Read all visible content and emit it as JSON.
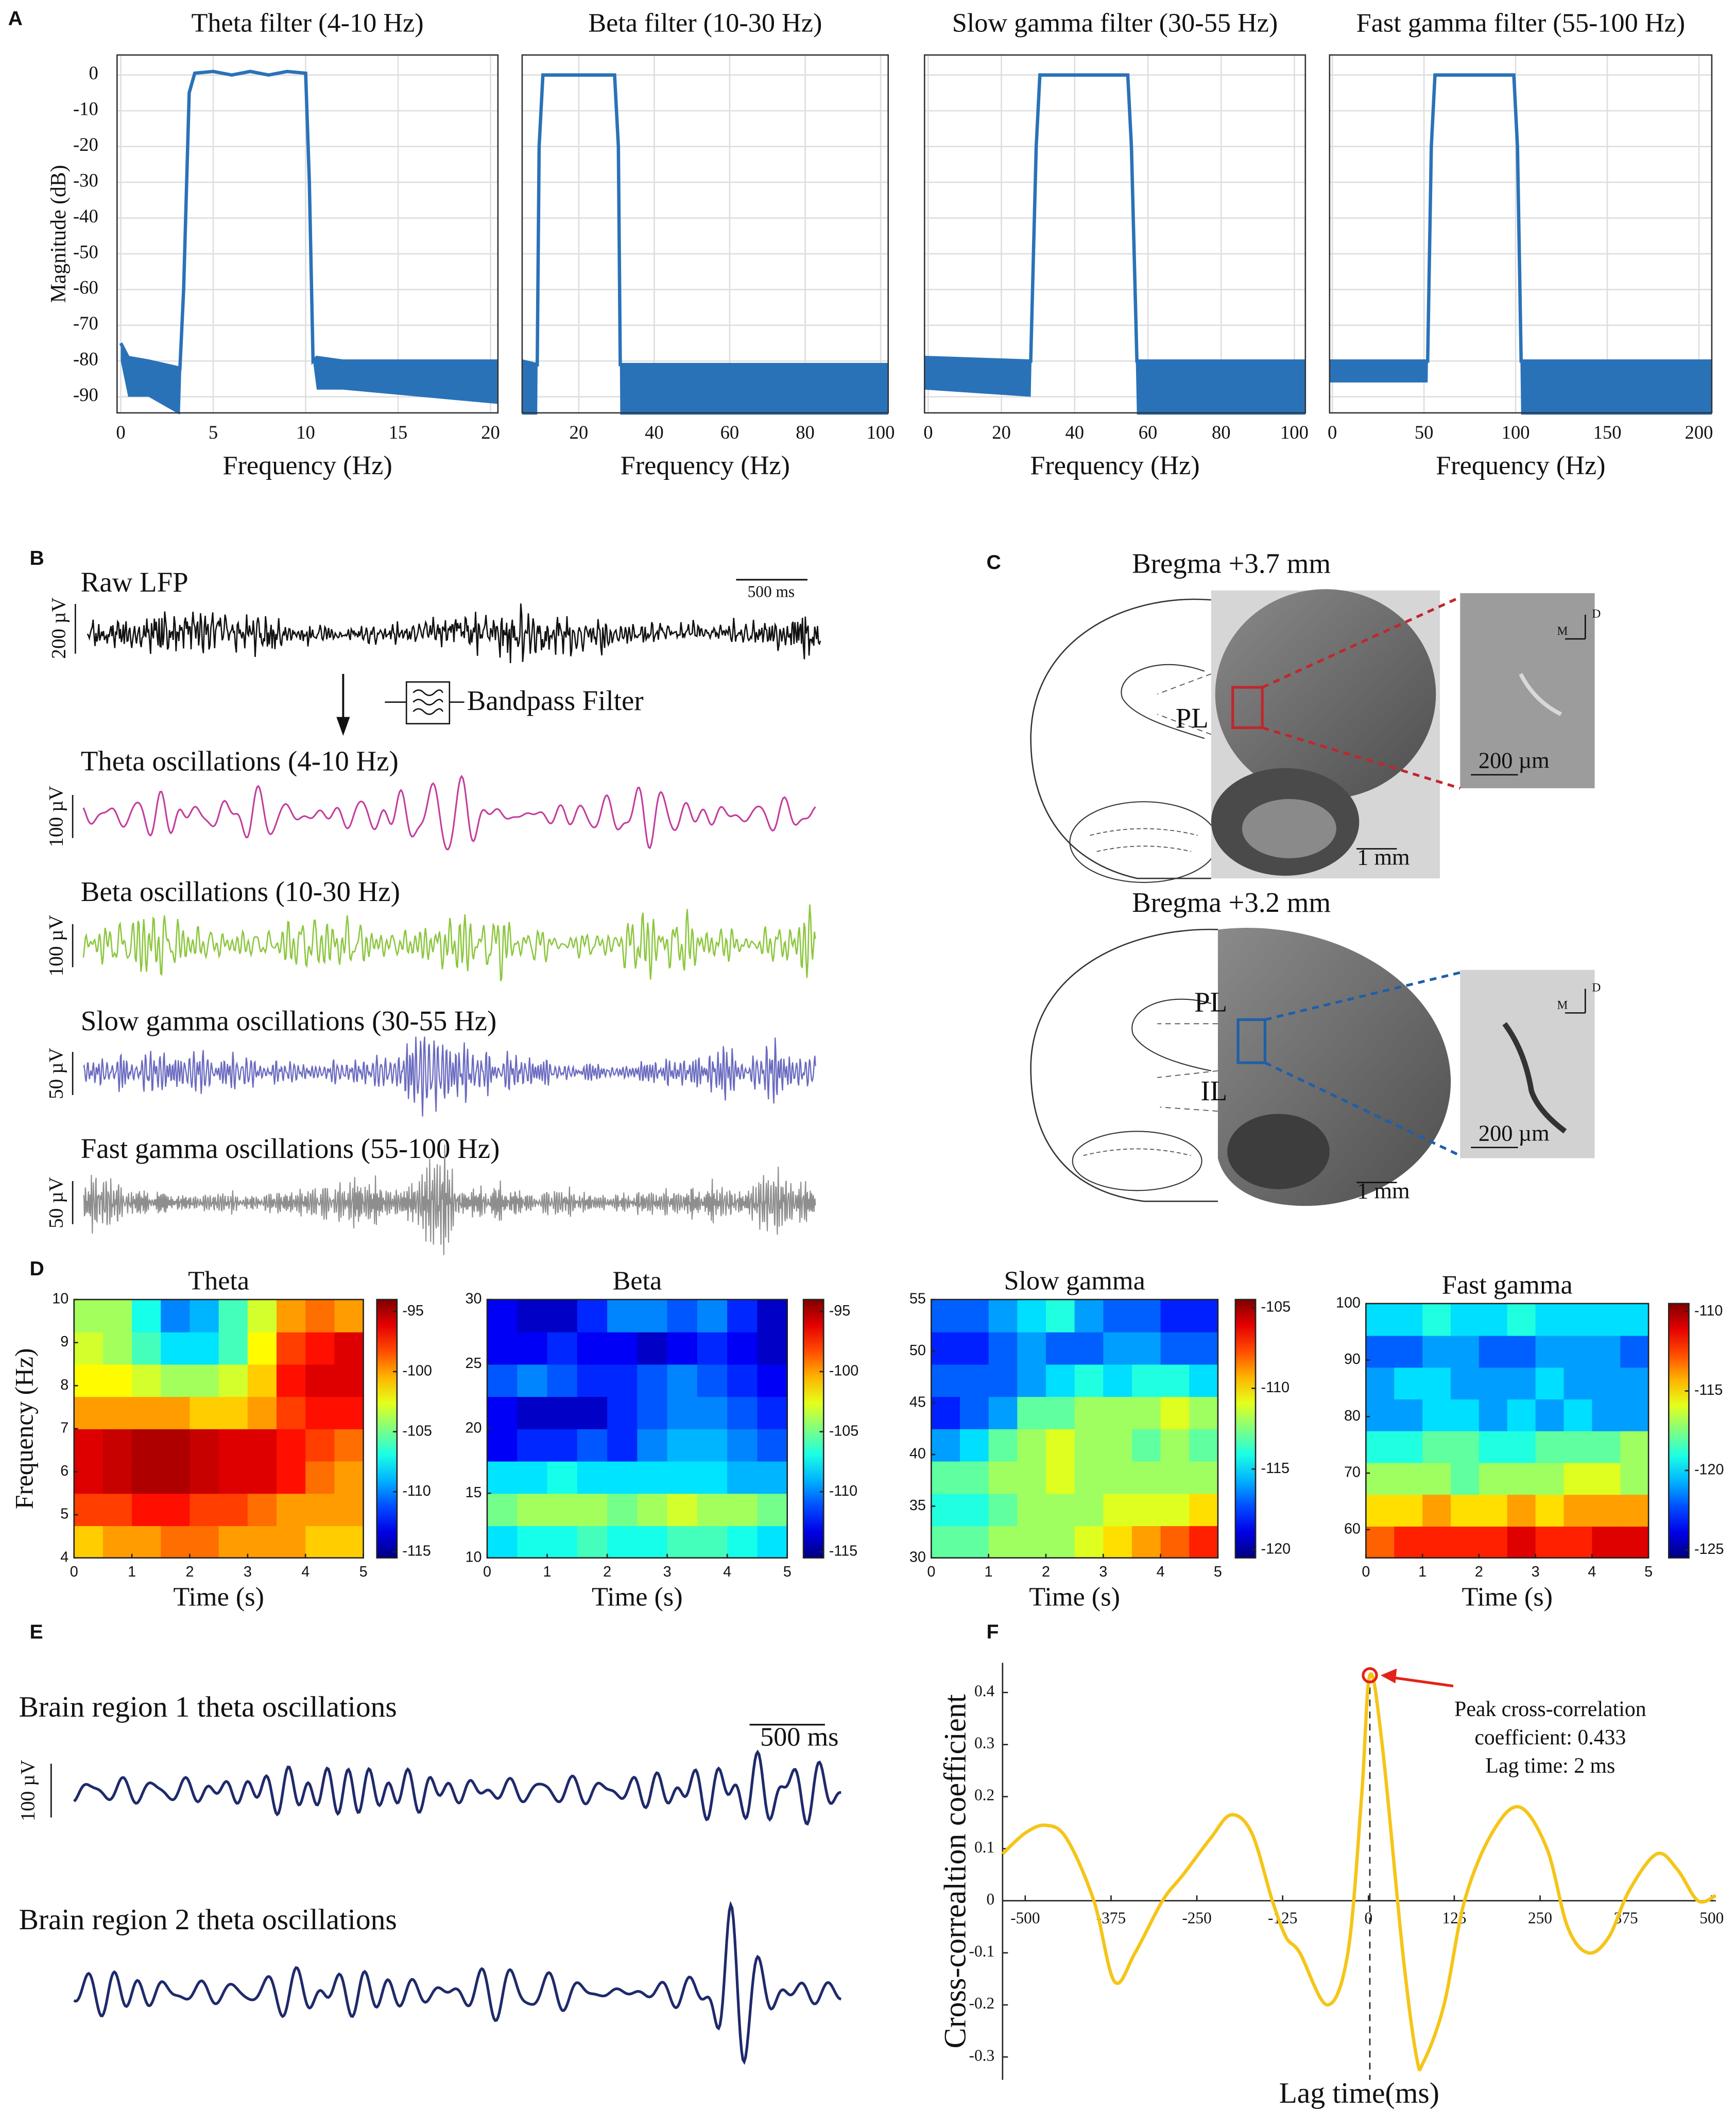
{
  "panel_labels": [
    "A",
    "B",
    "C",
    "D",
    "E",
    "F"
  ],
  "panel_b": {
    "raw_title": "Raw LFP",
    "time_scale": "500 ms",
    "raw_scale": "200 µV",
    "filter_label": "Bandpass Filter",
    "bands": [
      {
        "title": "Theta oscillations (4-10 Hz)",
        "scale": "100 µV",
        "color": "#c33d9d"
      },
      {
        "title": "Beta oscillations (10-30 Hz)",
        "scale": "100 µV",
        "color": "#8cc63e"
      },
      {
        "title": "Slow gamma oscillations (30-55 Hz)",
        "scale": "50 µV",
        "color": "#6a6ac0"
      },
      {
        "title": "Fast gamma oscillations (55-100 Hz)",
        "scale": "50 µV",
        "color": "#8e8e8e"
      }
    ]
  },
  "panel_c": {
    "sections": [
      {
        "title": "Bregma +3.7 mm",
        "regions": [
          "PL"
        ],
        "inset_scale": "200 µm",
        "slice_scale": "1 mm",
        "axes": [
          "D",
          "M"
        ],
        "box_color": "#c0272d"
      },
      {
        "title": "Bregma +3.2 mm",
        "regions": [
          "PL",
          "IL"
        ],
        "inset_scale": "200 µm",
        "slice_scale": "1 mm",
        "axes": [
          "D",
          "M"
        ],
        "box_color": "#1f5fa8"
      }
    ]
  },
  "panel_e": {
    "traces": [
      {
        "title": "Brain region 1 theta oscillations"
      },
      {
        "title": "Brain region 2 theta oscillations"
      }
    ],
    "time_scale": "500 ms",
    "amp_scale": "100 µV",
    "color": "#1f2a6b"
  },
  "chart_data": [
    {
      "type": "filter",
      "title": "Theta filter (4-10 Hz)",
      "xlabel": "Frequency (Hz)",
      "ylabel": "Magnitude (dB)",
      "x": [
        0,
        0.4,
        1.5,
        3.2,
        3.4,
        3.7,
        4.0,
        5,
        6,
        7,
        8,
        9,
        10,
        10.2,
        10.4,
        10.6,
        12,
        20.4
      ],
      "series": [
        {
          "color": "#2a72b8",
          "values": [
            -75,
            -79,
            -80,
            -82,
            -60,
            -5,
            0.5,
            1,
            0,
            1,
            0,
            1,
            0.5,
            -30,
            -80,
            -79,
            -80,
            -80
          ]
        },
        {
          "color": "#2a72b8",
          "values": [
            -80,
            -90,
            -90,
            -95,
            -60,
            -5,
            0.5,
            1,
            0,
            1,
            0,
            1,
            0.5,
            -30,
            -80,
            -88,
            -88,
            -92
          ]
        }
      ],
      "fill_between": true,
      "xlim": [
        -0.2,
        20.4
      ],
      "xticks": [
        0,
        5,
        10,
        15,
        20
      ],
      "ylim": [
        -94.5,
        5.6
      ],
      "yticks": [
        0,
        -10,
        -20,
        -30,
        -40,
        -50,
        -60,
        -70,
        -80,
        -90
      ],
      "show_ytick_labels": true,
      "grid": true
    },
    {
      "type": "filter",
      "title": "Beta filter (10-30 Hz)",
      "xlabel": "Frequency (Hz)",
      "x": [
        5,
        9,
        9.5,
        10.5,
        29.5,
        30.5,
        31,
        102
      ],
      "series": [
        {
          "color": "#2a72b8",
          "values": [
            -80,
            -81,
            -20,
            0,
            0,
            -20,
            -81,
            -81
          ]
        },
        {
          "color": "#2a72b8",
          "values": [
            -95,
            -95,
            -20,
            0,
            0,
            -20,
            -95,
            -95
          ]
        }
      ],
      "fill_between": true,
      "xlim": [
        5,
        102
      ],
      "xticks": [
        20,
        40,
        60,
        80,
        100
      ],
      "ylim": [
        -94.5,
        5.6
      ],
      "yticks": [
        0,
        -10,
        -20,
        -30,
        -40,
        -50,
        -60,
        -70,
        -80,
        -90
      ],
      "show_ytick_labels": false,
      "grid": true
    },
    {
      "type": "filter",
      "title": "Slow gamma filter (30-55 Hz)",
      "xlabel": "Frequency (Hz)",
      "x": [
        -1,
        28,
        29.5,
        30.5,
        54.5,
        55.5,
        57,
        103
      ],
      "series": [
        {
          "color": "#2a72b8",
          "values": [
            -79,
            -80,
            -20,
            0,
            0,
            -20,
            -80,
            -80
          ]
        },
        {
          "color": "#2a72b8",
          "values": [
            -88,
            -90,
            -20,
            0,
            0,
            -20,
            -95,
            -95
          ]
        }
      ],
      "fill_between": true,
      "xlim": [
        -1,
        103
      ],
      "xticks": [
        0,
        20,
        40,
        60,
        80,
        100
      ],
      "ylim": [
        -94.5,
        5.6
      ],
      "yticks": [
        0,
        -10,
        -20,
        -30,
        -40,
        -50,
        -60,
        -70,
        -80,
        -90
      ],
      "show_ytick_labels": false,
      "grid": true
    },
    {
      "type": "filter",
      "title": "Fast gamma filter (55-100 Hz)",
      "xlabel": "Frequency (Hz)",
      "x": [
        -1.5,
        52,
        54,
        56,
        99,
        101,
        103,
        207
      ],
      "series": [
        {
          "color": "#2a72b8",
          "values": [
            -80,
            -80,
            -20,
            0,
            0,
            -20,
            -80,
            -80
          ]
        },
        {
          "color": "#2a72b8",
          "values": [
            -86,
            -86,
            -20,
            0,
            0,
            -20,
            -95,
            -95
          ]
        }
      ],
      "fill_between": true,
      "xlim": [
        -1.5,
        207
      ],
      "xticks": [
        0,
        50,
        100,
        150,
        200
      ],
      "ylim": [
        -94.5,
        5.6
      ],
      "yticks": [
        0,
        -10,
        -20,
        -30,
        -40,
        -50,
        -60,
        -70,
        -80,
        -90
      ],
      "show_ytick_labels": false,
      "grid": true
    },
    {
      "type": "heatmap",
      "title": "Theta",
      "xlabel": "Time (s)",
      "ylabel": "Frequency (Hz)",
      "xlim": [
        0,
        5
      ],
      "xticks": [
        0,
        1,
        2,
        3,
        4,
        5
      ],
      "ylim": [
        4,
        10
      ],
      "yticks": [
        4,
        5,
        6,
        7,
        8,
        9,
        10
      ],
      "clim": [
        -115.5,
        -94
      ],
      "cticks": [
        -95,
        -100,
        -105,
        -110,
        -115
      ],
      "values": [
        [
          -101,
          -100,
          -100,
          -99,
          -99,
          -100,
          -100,
          -100,
          -101,
          -101
        ],
        [
          -98,
          -98,
          -97,
          -97,
          -98,
          -98,
          -99,
          -100,
          -100,
          -100
        ],
        [
          -96,
          -95.5,
          -95,
          -95,
          -95.5,
          -96,
          -96,
          -97,
          -99,
          -100
        ],
        [
          -96,
          -95.5,
          -95,
          -95,
          -95.5,
          -96,
          -96,
          -97,
          -98,
          -99
        ],
        [
          -100,
          -100,
          -100,
          -100,
          -101,
          -101,
          -100,
          -98,
          -97,
          -97
        ],
        [
          -102,
          -102,
          -103,
          -104,
          -104,
          -103,
          -101,
          -97,
          -96,
          -96
        ],
        [
          -103,
          -104,
          -106,
          -108,
          -108,
          -106,
          -102,
          -98,
          -97,
          -96
        ],
        [
          -104,
          -104,
          -107,
          -110,
          -109,
          -106,
          -103,
          -100,
          -99,
          -100
        ]
      ]
    },
    {
      "type": "heatmap",
      "title": "Beta",
      "xlabel": "Time (s)",
      "xlim": [
        0,
        5
      ],
      "xticks": [
        0,
        1,
        2,
        3,
        4,
        5
      ],
      "ylim": [
        10,
        30
      ],
      "yticks": [
        10,
        15,
        20,
        25,
        30
      ],
      "clim": [
        -115.5,
        -94
      ],
      "cticks": [
        -95,
        -100,
        -105,
        -110,
        -115
      ],
      "values": [
        [
          -108,
          -107,
          -107,
          -106,
          -107,
          -107,
          -106,
          -106,
          -107,
          -108
        ],
        [
          -105,
          -104,
          -104,
          -104,
          -105,
          -104,
          -103,
          -104,
          -104,
          -105
        ],
        [
          -108,
          -108,
          -107,
          -108,
          -108,
          -108,
          -108,
          -108,
          -109,
          -109
        ],
        [
          -113,
          -112,
          -112,
          -111,
          -112,
          -110,
          -109,
          -109,
          -110,
          -111
        ],
        [
          -113,
          -114,
          -114,
          -114,
          -112,
          -111,
          -110,
          -110,
          -111,
          -112
        ],
        [
          -111,
          -110,
          -111,
          -112,
          -112,
          -111,
          -110,
          -111,
          -112,
          -113
        ],
        [
          -113,
          -113,
          -112,
          -113,
          -113,
          -114,
          -113,
          -112,
          -113,
          -114
        ],
        [
          -113,
          -114,
          -114,
          -112,
          -110,
          -110,
          -111,
          -110,
          -112,
          -114
        ]
      ]
    },
    {
      "type": "heatmap",
      "title": "Slow gamma",
      "xlabel": "Time (s)",
      "xlim": [
        0,
        5
      ],
      "xticks": [
        0,
        1,
        2,
        3,
        4,
        5
      ],
      "ylim": [
        30,
        55
      ],
      "yticks": [
        30,
        35,
        40,
        45,
        50,
        55
      ],
      "clim": [
        -120.5,
        -104.5
      ],
      "cticks": [
        -105,
        -110,
        -115,
        -120
      ],
      "values": [
        [
          -113,
          -113,
          -112,
          -112,
          -112,
          -111,
          -110,
          -109,
          -108,
          -107
        ],
        [
          -114,
          -114,
          -113,
          -112,
          -112,
          -112,
          -111,
          -111,
          -111,
          -110
        ],
        [
          -113,
          -113,
          -112,
          -112,
          -111,
          -112,
          -112,
          -112,
          -112,
          -112
        ],
        [
          -116,
          -115,
          -113,
          -112,
          -111,
          -112,
          -112,
          -113,
          -112,
          -113
        ],
        [
          -118,
          -117,
          -116,
          -113,
          -113,
          -112,
          -112,
          -112,
          -111,
          -112
        ],
        [
          -117,
          -117,
          -117,
          -116,
          -115,
          -114,
          -115,
          -114,
          -114,
          -115
        ],
        [
          -118,
          -118,
          -117,
          -116,
          -117,
          -117,
          -116,
          -116,
          -117,
          -117
        ],
        [
          -117,
          -117,
          -116,
          -115,
          -114,
          -116,
          -117,
          -117,
          -118,
          -118
        ]
      ]
    },
    {
      "type": "heatmap",
      "title": "Fast gamma",
      "xlabel": "Time (s)",
      "xlim": [
        0,
        5
      ],
      "xticks": [
        0,
        1,
        2,
        3,
        4,
        5
      ],
      "ylim": [
        55,
        100
      ],
      "yticks": [
        60,
        70,
        80,
        90,
        100
      ],
      "clim": [
        -125.5,
        -109.5
      ],
      "cticks": [
        -110,
        -115,
        -120,
        -125
      ],
      "values": [
        [
          -113,
          -112,
          -112,
          -112,
          -112,
          -111,
          -112,
          -112,
          -111,
          -111
        ],
        [
          -115,
          -115,
          -114,
          -115,
          -115,
          -114,
          -115,
          -114,
          -114,
          -114
        ],
        [
          -117,
          -117,
          -117,
          -118,
          -117,
          -117,
          -117,
          -116,
          -116,
          -117
        ],
        [
          -119,
          -119,
          -118,
          -118,
          -119,
          -119,
          -118,
          -118,
          -118,
          -117
        ],
        [
          -121,
          -121,
          -120,
          -120,
          -121,
          -120,
          -121,
          -120,
          -121,
          -121
        ],
        [
          -121,
          -120,
          -120,
          -121,
          -121,
          -121,
          -120,
          -121,
          -121,
          -121
        ],
        [
          -122,
          -122,
          -121,
          -121,
          -122,
          -122,
          -121,
          -121,
          -121,
          -122
        ],
        [
          -120,
          -120,
          -119,
          -120,
          -120,
          -119,
          -120,
          -120,
          -120,
          -120
        ]
      ]
    },
    {
      "type": "line",
      "xlabel": "Lag time(ms)",
      "ylabel": "Cross-correaltion coefficient",
      "color": "#f5c518",
      "x": [
        -533,
        -500,
        -470,
        -440,
        -400,
        -370,
        -340,
        -300,
        -270,
        -230,
        -200,
        -170,
        -140,
        -120,
        -100,
        -60,
        -30,
        -10,
        2,
        20,
        50,
        70,
        80,
        110,
        140,
        180,
        220,
        260,
        290,
        320,
        350,
        380,
        420,
        450,
        480,
        506
      ],
      "values": [
        0.09,
        0.13,
        0.145,
        0.12,
        0.0,
        -0.155,
        -0.1,
        0.0,
        0.05,
        0.12,
        0.165,
        0.13,
        0.0,
        -0.07,
        -0.1,
        -0.2,
        -0.1,
        0.2,
        0.433,
        0.3,
        -0.1,
        -0.3,
        -0.31,
        -0.2,
        0.0,
        0.13,
        0.18,
        0.1,
        -0.05,
        -0.1,
        -0.07,
        0.02,
        0.09,
        0.06,
        0.0,
        0.01
      ],
      "peak": {
        "x": 2,
        "value": 0.433,
        "color": "#e32219"
      },
      "annotation": [
        "Peak cross-correlation",
        "coefficient: 0.433",
        "Lag time: 2 ms"
      ],
      "xlim": [
        -533,
        506
      ],
      "xticks": [
        -500,
        -375,
        -250,
        -125,
        0,
        125,
        250,
        375,
        500
      ],
      "ylim": [
        -0.344,
        0.457
      ],
      "yticks": [
        -0.3,
        -0.2,
        -0.1,
        0,
        0.1,
        0.2,
        0.3,
        0.4
      ]
    }
  ]
}
